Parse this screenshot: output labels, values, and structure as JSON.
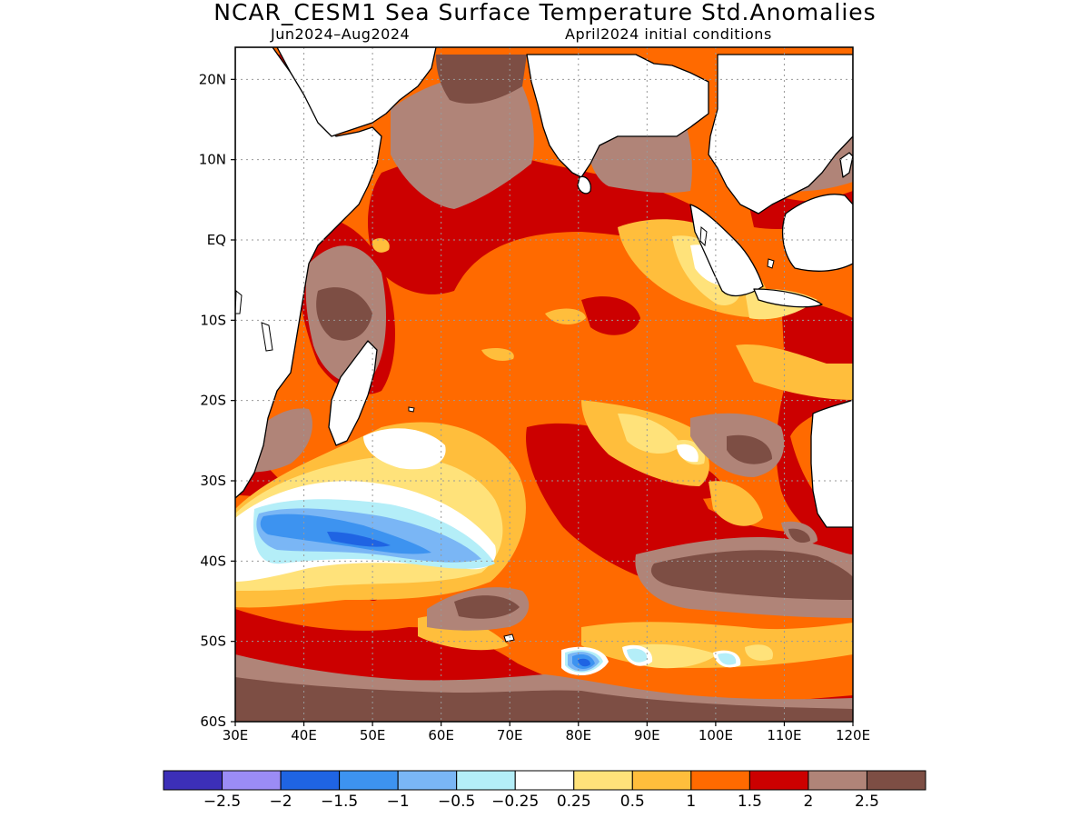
{
  "title": "NCAR_CESM1 Sea Surface Temperature Std.Anomalies",
  "period": "Jun2024–Aug2024",
  "init": "April2024 initial conditions",
  "map": {
    "lon_range": [
      30,
      120
    ],
    "lat_range": [
      -60,
      24
    ],
    "lon_ticks": [
      {
        "v": 30,
        "label": "30E"
      },
      {
        "v": 40,
        "label": "40E"
      },
      {
        "v": 50,
        "label": "50E"
      },
      {
        "v": 60,
        "label": "60E"
      },
      {
        "v": 70,
        "label": "70E"
      },
      {
        "v": 80,
        "label": "80E"
      },
      {
        "v": 90,
        "label": "90E"
      },
      {
        "v": 100,
        "label": "100E"
      },
      {
        "v": 110,
        "label": "110E"
      },
      {
        "v": 120,
        "label": "120E"
      }
    ],
    "lat_ticks": [
      {
        "v": 20,
        "label": "20N"
      },
      {
        "v": 10,
        "label": "10N"
      },
      {
        "v": 0,
        "label": "EQ"
      },
      {
        "v": -10,
        "label": "10S"
      },
      {
        "v": -20,
        "label": "20S"
      },
      {
        "v": -30,
        "label": "30S"
      },
      {
        "v": -40,
        "label": "40S"
      },
      {
        "v": -50,
        "label": "50S"
      },
      {
        "v": -60,
        "label": "60S"
      }
    ],
    "gridlines": "dotted"
  },
  "colorbar": {
    "colors": [
      "#3c2fb8",
      "#9b8cf5",
      "#1f64e3",
      "#3d93f0",
      "#7ab6f5",
      "#b4eef8",
      "#ffffff",
      "#ffe27a",
      "#ffbe3c",
      "#ff6a00",
      "#cc0000",
      "#b08478",
      "#7d4e44"
    ],
    "labels": [
      "−2.5",
      "−2",
      "−1.5",
      "−1",
      "−0.5",
      "−0.25",
      "0.25",
      "0.5",
      "1",
      "1.5",
      "2",
      "2.5"
    ]
  }
}
